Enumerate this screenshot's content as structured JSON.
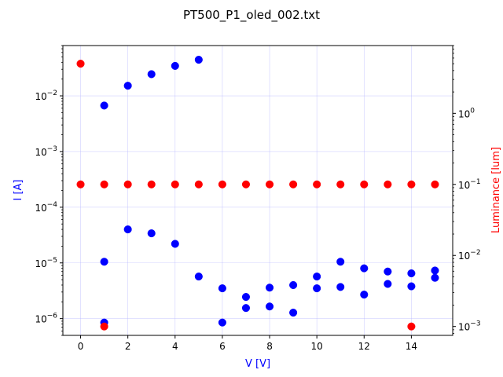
{
  "chart_data": {
    "type": "scatter",
    "title": "PT500_P1_oled_002.txt",
    "xlabel": "V [V]",
    "ylabel_left": "I [A]",
    "ylabel_right": "Luminance [lum]",
    "xlim": [
      -0.75,
      15.75
    ],
    "ylim_left": [
      5e-07,
      0.08
    ],
    "ylim_right": [
      0.00075,
      9.0
    ],
    "y_scale_left": "log",
    "y_scale_right": "log",
    "grid": true,
    "x_ticks": [
      0,
      2,
      4,
      6,
      8,
      10,
      12,
      14
    ],
    "x_tick_labels": [
      "0",
      "2",
      "4",
      "6",
      "8",
      "10",
      "12",
      "14"
    ],
    "y_left_ticks": [
      1e-06,
      1e-05,
      0.0001,
      0.001,
      0.01
    ],
    "y_left_tick_labels": [
      {
        "base": "10",
        "exp": "−6"
      },
      {
        "base": "10",
        "exp": "−5"
      },
      {
        "base": "10",
        "exp": "−4"
      },
      {
        "base": "10",
        "exp": "−3"
      },
      {
        "base": "10",
        "exp": "−2"
      }
    ],
    "y_right_ticks": [
      0.001,
      0.01,
      0.1,
      1
    ],
    "y_right_tick_labels": [
      {
        "base": "10",
        "exp": "−3"
      },
      {
        "base": "10",
        "exp": "−2"
      },
      {
        "base": "10",
        "exp": "−1"
      },
      {
        "base": "10",
        "exp": "0"
      }
    ],
    "colors": {
      "current": "#0000ff",
      "luminance": "#ff0000",
      "grid": "#b0b0ff"
    },
    "series": [
      {
        "axis": "left",
        "color": "#0000ff",
        "points": [
          [
            1,
            0.0067
          ],
          [
            2,
            0.0152
          ],
          [
            3,
            0.0245
          ],
          [
            4,
            0.0345
          ],
          [
            5,
            0.0445
          ],
          [
            1,
            1.05e-05
          ],
          [
            2,
            4e-05
          ],
          [
            3,
            3.4e-05
          ],
          [
            4,
            2.2e-05
          ],
          [
            5,
            5.7e-06
          ],
          [
            6,
            3.5e-06
          ],
          [
            7,
            2.45e-06
          ],
          [
            8,
            3.6e-06
          ],
          [
            9,
            4e-06
          ],
          [
            10,
            5.7e-06
          ],
          [
            11,
            1.05e-05
          ],
          [
            12,
            8e-06
          ],
          [
            13,
            7e-06
          ],
          [
            14,
            6.5e-06
          ],
          [
            15,
            7.3e-06
          ],
          [
            1,
            8.5e-07
          ],
          [
            6,
            8.5e-07
          ],
          [
            7,
            1.55e-06
          ],
          [
            8,
            1.65e-06
          ],
          [
            9,
            1.28e-06
          ],
          [
            10,
            3.5e-06
          ],
          [
            11,
            3.7e-06
          ],
          [
            12,
            2.7e-06
          ],
          [
            13,
            4.2e-06
          ],
          [
            14,
            3.8e-06
          ],
          [
            15,
            5.4e-06
          ]
        ]
      },
      {
        "axis": "right",
        "color": "#ff0000",
        "points": [
          [
            0,
            5.0
          ],
          [
            0,
            0.1
          ],
          [
            1,
            0.1
          ],
          [
            2,
            0.1
          ],
          [
            3,
            0.1
          ],
          [
            4,
            0.1
          ],
          [
            5,
            0.1
          ],
          [
            6,
            0.1
          ],
          [
            7,
            0.1
          ],
          [
            8,
            0.1
          ],
          [
            9,
            0.1
          ],
          [
            10,
            0.1
          ],
          [
            11,
            0.1
          ],
          [
            12,
            0.1
          ],
          [
            13,
            0.1
          ],
          [
            14,
            0.1
          ],
          [
            15,
            0.1
          ],
          [
            1,
            0.001
          ],
          [
            14,
            0.001
          ]
        ]
      }
    ]
  }
}
